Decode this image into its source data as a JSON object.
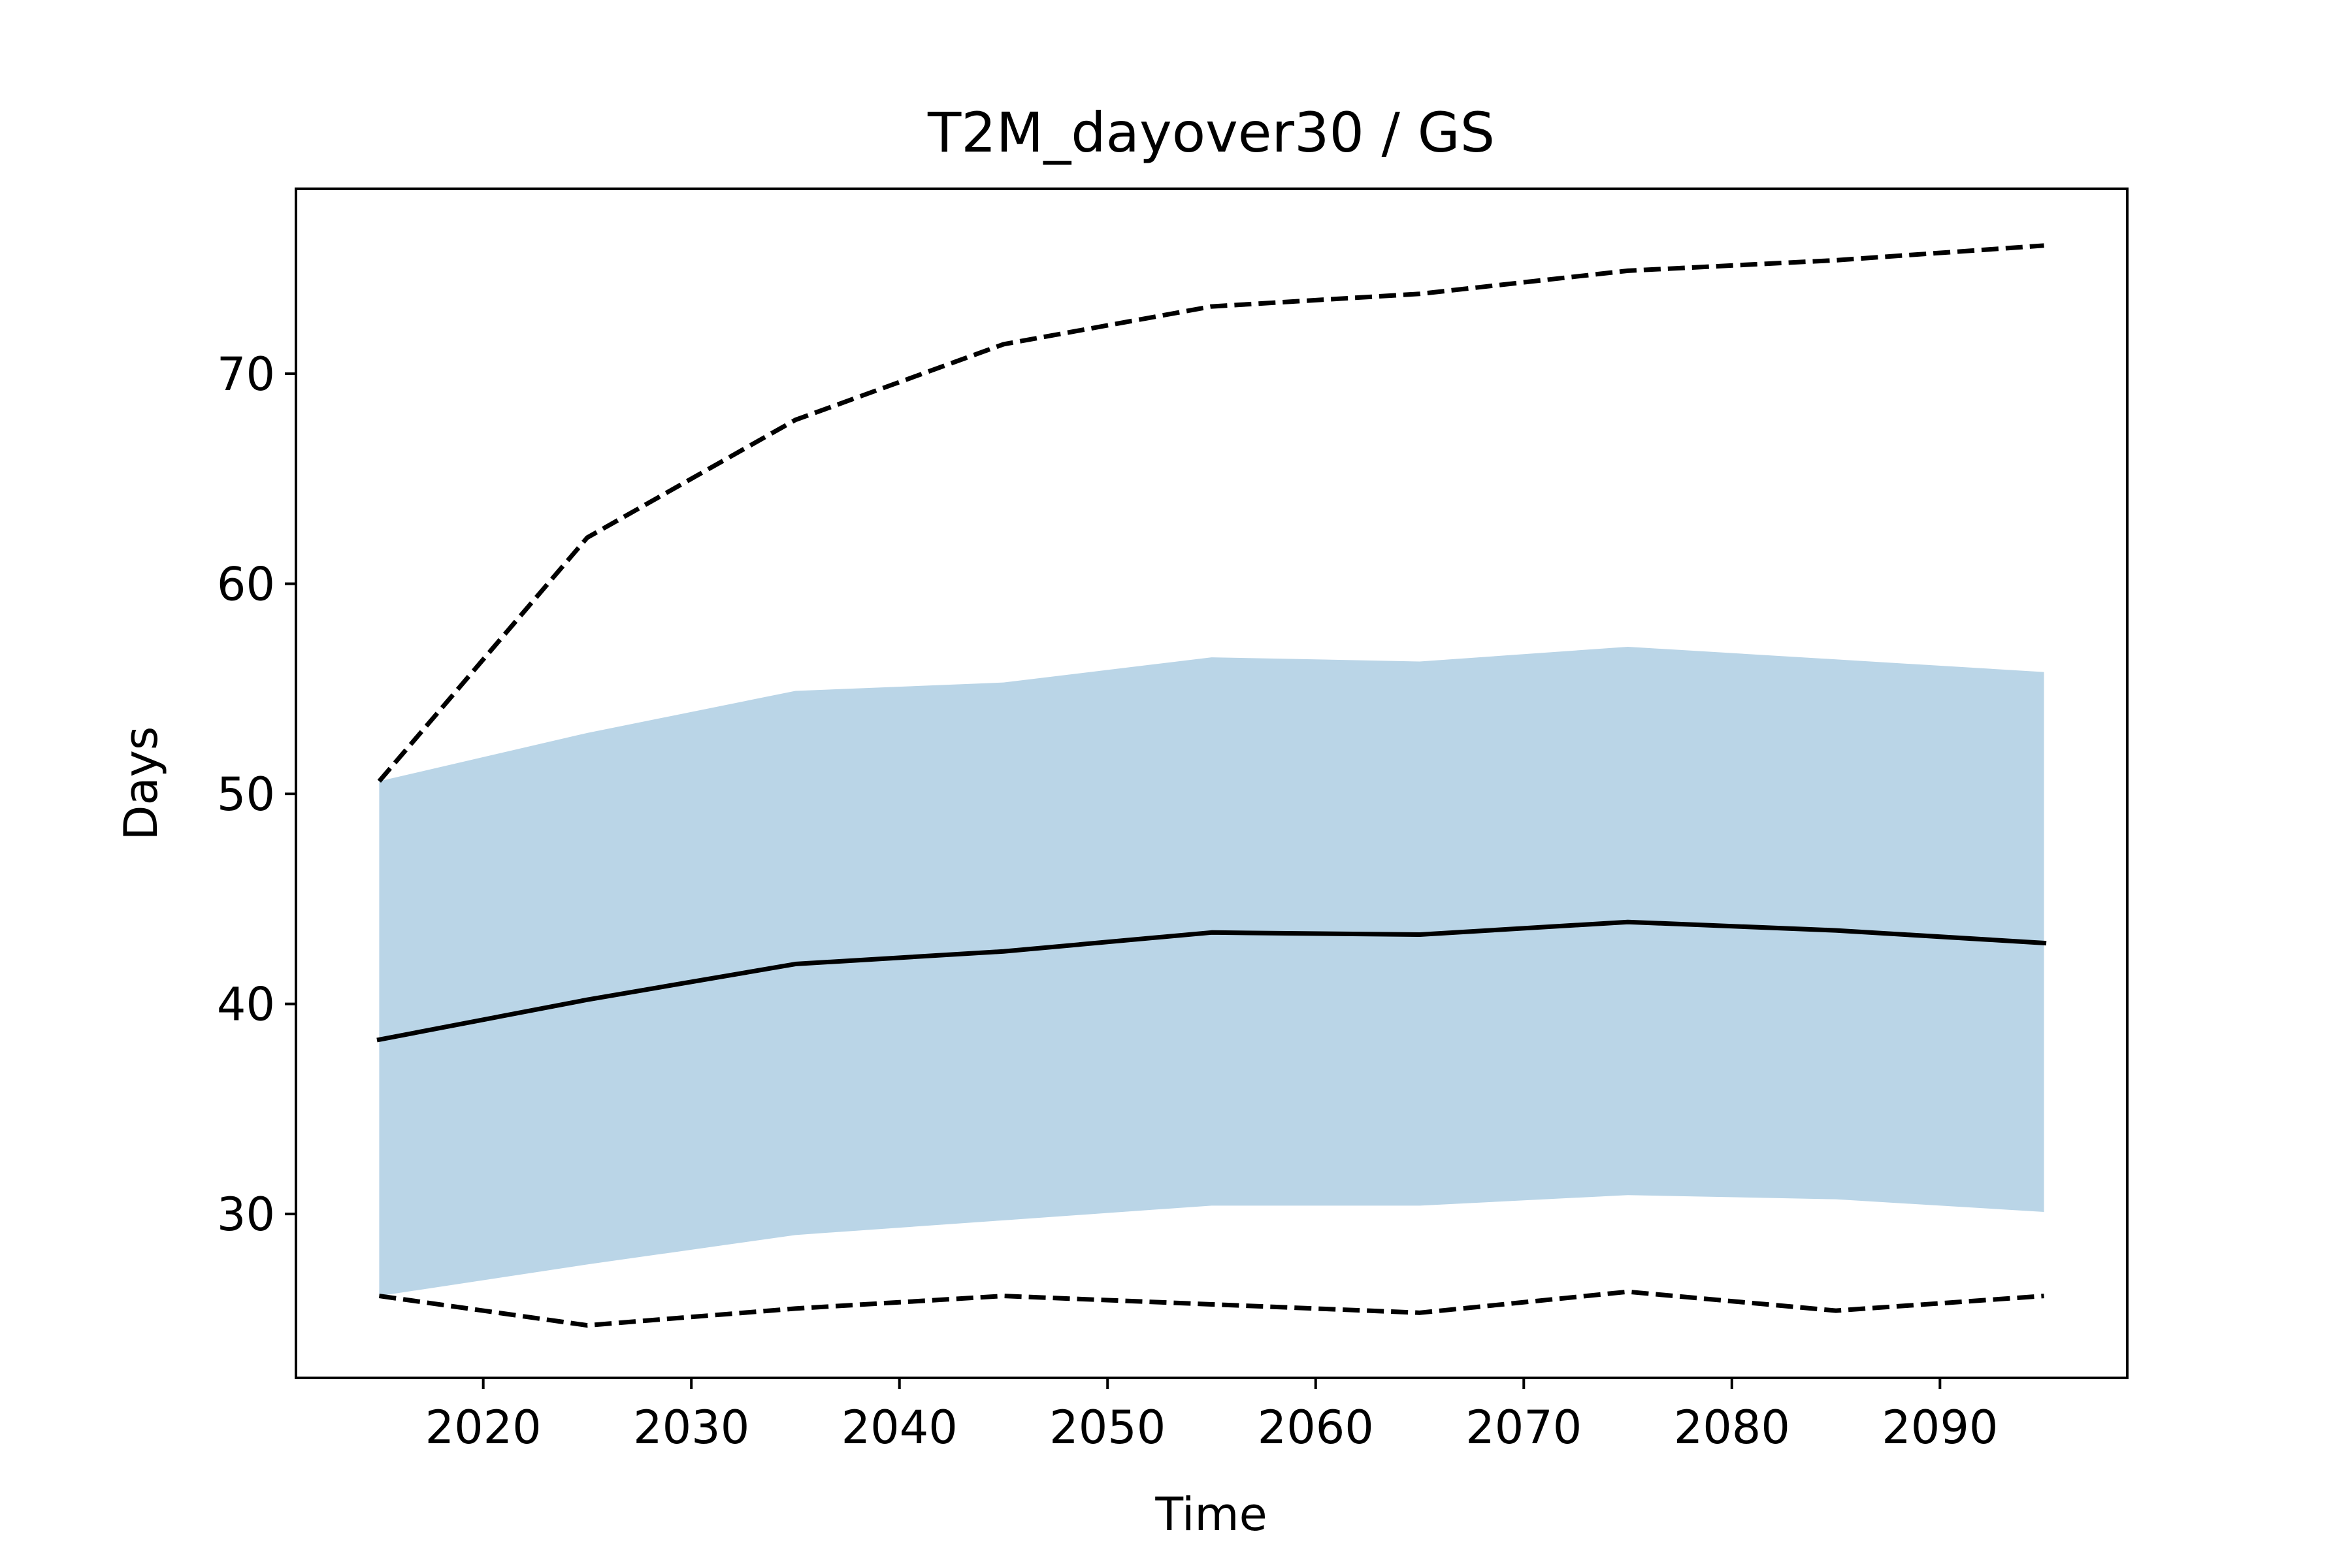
{
  "chart_data": {
    "type": "line",
    "title": "T2M_dayover30 / GS",
    "xlabel": "Time",
    "ylabel": "Days",
    "xlim": [
      2011,
      2099
    ],
    "ylim": [
      22.2,
      78.8
    ],
    "xticks": [
      2020,
      2030,
      2040,
      2050,
      2060,
      2070,
      2080,
      2090
    ],
    "yticks": [
      30,
      40,
      50,
      60,
      70
    ],
    "grid": false,
    "x": [
      2015,
      2025,
      2035,
      2045,
      2055,
      2065,
      2075,
      2085,
      2095
    ],
    "band": {
      "color": "#bad5e7",
      "lower": [
        26.1,
        27.6,
        29.0,
        29.7,
        30.4,
        30.4,
        30.9,
        30.7,
        30.1
      ],
      "upper": [
        50.6,
        52.9,
        54.9,
        55.3,
        56.5,
        56.3,
        57.0,
        56.4,
        55.8
      ]
    },
    "series": [
      {
        "style": "solid",
        "color": "#000000",
        "values": [
          38.3,
          40.2,
          41.9,
          42.5,
          43.4,
          43.3,
          43.9,
          43.5,
          42.9
        ]
      },
      {
        "style": "dashed",
        "color": "#000000",
        "values": [
          50.6,
          62.2,
          67.8,
          71.4,
          73.2,
          73.8,
          74.9,
          75.4,
          76.1
        ]
      },
      {
        "style": "dashed",
        "color": "#000000",
        "values": [
          26.1,
          24.7,
          25.5,
          26.1,
          25.7,
          25.3,
          26.3,
          25.4,
          26.1
        ]
      }
    ]
  }
}
